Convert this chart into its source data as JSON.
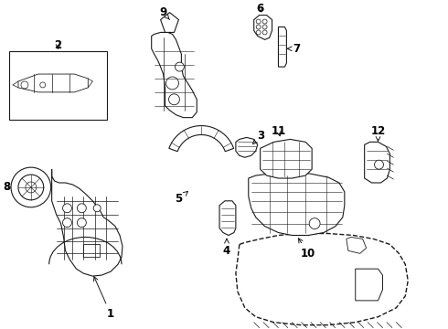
{
  "background_color": "#ffffff",
  "line_color": "#1a1a1a",
  "line_width": 0.8,
  "label_fontsize": 8.5
}
